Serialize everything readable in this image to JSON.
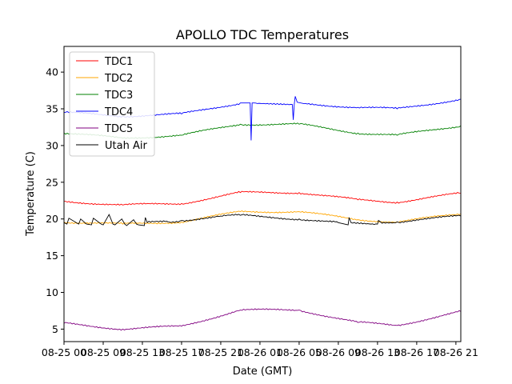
{
  "chart_data": {
    "type": "line",
    "title": "APOLLO TDC Temperatures",
    "xlabel": "Date (GMT)",
    "ylabel": "Temperature (C)",
    "xlim": [
      0,
      40.5
    ],
    "ylim": [
      3.3,
      43.5
    ],
    "yticks": [
      5,
      10,
      15,
      20,
      25,
      30,
      35,
      40
    ],
    "xticks": [
      {
        "value": 0,
        "label": "08-25 00"
      },
      {
        "value": 4,
        "label": "08-25 09"
      },
      {
        "value": 8,
        "label": "08-25 13"
      },
      {
        "value": 12,
        "label": "08-25 17"
      },
      {
        "value": 16,
        "label": "08-25 21"
      },
      {
        "value": 20,
        "label": "08-26 01"
      },
      {
        "value": 24,
        "label": "08-26 05"
      },
      {
        "value": 28,
        "label": "08-26 09"
      },
      {
        "value": 32,
        "label": "08-26 13"
      },
      {
        "value": 36,
        "label": "08-26 17"
      },
      {
        "value": 40,
        "label": "08-26 21"
      }
    ],
    "legend_position": "top-left",
    "series": [
      {
        "name": "TDC1",
        "color": "#ff0000",
        "x": [
          0,
          6,
          12,
          18,
          24,
          30,
          34,
          40.5
        ],
        "values": [
          22.4,
          21.9,
          22.1,
          23.6,
          23.6,
          22.6,
          22.3,
          23.5
        ]
      },
      {
        "name": "TDC2",
        "color": "#ffa500",
        "x": [
          0,
          6,
          12,
          18,
          24,
          30,
          34,
          40.5
        ],
        "values": [
          19.6,
          19.3,
          19.6,
          21.0,
          21.0,
          19.9,
          19.6,
          20.7
        ]
      },
      {
        "name": "TDC3",
        "color": "#008000",
        "x": [
          0,
          6,
          12,
          18,
          24,
          30,
          34,
          40.5
        ],
        "values": [
          31.7,
          31.0,
          31.4,
          32.9,
          32.9,
          31.7,
          31.4,
          32.7
        ]
      },
      {
        "name": "TDC4",
        "color": "#0000ff",
        "x": [
          0,
          6,
          12,
          18,
          19.0,
          19.1,
          19.2,
          19.3,
          19.4,
          23.3,
          23.4,
          23.5,
          23.6,
          23.8,
          24.5,
          30,
          34,
          40.5
        ],
        "values": [
          34.5,
          34.0,
          34.3,
          35.8,
          35.8,
          30.7,
          35.8,
          35.8,
          35.8,
          35.6,
          33.5,
          35.6,
          36.7,
          35.9,
          35.7,
          35.2,
          35.0,
          36.3
        ]
      },
      {
        "name": "TDC5",
        "color": "#800080",
        "x": [
          0,
          6,
          12,
          18,
          24,
          30,
          34,
          40.5
        ],
        "values": [
          5.8,
          5.0,
          5.4,
          7.6,
          7.6,
          5.9,
          5.5,
          7.4
        ]
      },
      {
        "name": "Utah Air",
        "color": "#000000",
        "x": [
          0,
          0.3,
          0.5,
          1.5,
          1.7,
          2.3,
          2.8,
          3.0,
          3.8,
          4.0,
          4.6,
          5.0,
          5.2,
          5.9,
          6.2,
          6.4,
          7.1,
          7.4,
          7.6,
          8.2,
          8.3,
          8.5,
          10.5,
          10.6,
          12,
          14,
          16,
          18,
          20,
          24,
          28,
          29.0,
          29.1,
          29.3,
          32.0,
          32.1,
          32.3,
          34,
          36,
          40.5
        ],
        "values": [
          19.5,
          19.3,
          20.1,
          19.3,
          20.0,
          19.3,
          19.2,
          20.1,
          19.3,
          19.2,
          20.6,
          19.3,
          19.2,
          20.0,
          19.3,
          19.1,
          19.9,
          19.3,
          19.2,
          19.1,
          20.2,
          19.5,
          19.7,
          19.6,
          19.8,
          20.1,
          20.4,
          20.5,
          20.3,
          20.0,
          19.5,
          19.2,
          20.2,
          19.5,
          19.3,
          19.8,
          19.6,
          19.6,
          19.9,
          20.4
        ]
      }
    ]
  }
}
